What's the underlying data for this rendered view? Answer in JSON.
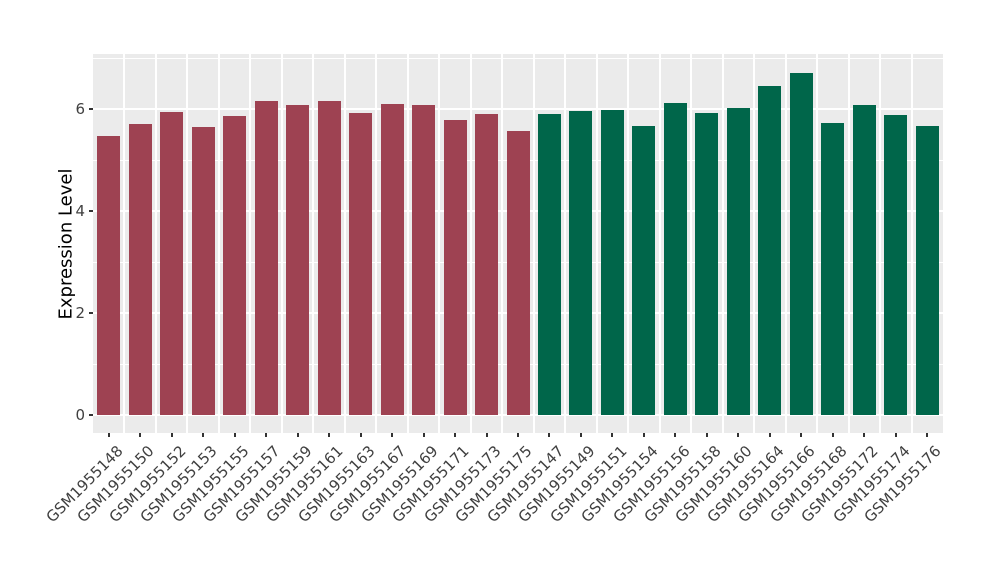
{
  "chart_data": {
    "type": "bar",
    "title": "",
    "xlabel": "",
    "ylabel": "Expression Level",
    "ylim": [
      0,
      7.1
    ],
    "yticks": [
      0,
      2,
      4,
      6
    ],
    "ytick_labels": [
      "0",
      "2",
      "4",
      "6"
    ],
    "minor_yticks": [
      1,
      3,
      5,
      7
    ],
    "grid": true,
    "legend_position": "none",
    "panel_bg": "#EBEBEB",
    "grid_color": "#FFFFFF",
    "tick_color": "#333333",
    "axis_text_color": "#404040",
    "group_colors": {
      "group1": "#9E4252",
      "group2": "#00664A"
    },
    "categories": [
      "GSM1955148",
      "GSM1955150",
      "GSM1955152",
      "GSM1955153",
      "GSM1955155",
      "GSM1955157",
      "GSM1955159",
      "GSM1955161",
      "GSM1955163",
      "GSM1955167",
      "GSM1955169",
      "GSM1955171",
      "GSM1955173",
      "GSM1955175",
      "GSM1955147",
      "GSM1955149",
      "GSM1955151",
      "GSM1955154",
      "GSM1955156",
      "GSM1955158",
      "GSM1955160",
      "GSM1955164",
      "GSM1955166",
      "GSM1955168",
      "GSM1955172",
      "GSM1955174",
      "GSM1955176"
    ],
    "values": [
      5.48,
      5.7,
      5.95,
      5.64,
      5.87,
      6.16,
      6.08,
      6.15,
      5.92,
      6.1,
      6.08,
      5.79,
      5.91,
      5.57,
      5.9,
      5.97,
      5.99,
      5.67,
      6.12,
      5.92,
      6.01,
      6.45,
      6.71,
      5.73,
      6.08,
      5.89,
      5.67
    ],
    "groups": [
      "group1",
      "group1",
      "group1",
      "group1",
      "group1",
      "group1",
      "group1",
      "group1",
      "group1",
      "group1",
      "group1",
      "group1",
      "group1",
      "group1",
      "group2",
      "group2",
      "group2",
      "group2",
      "group2",
      "group2",
      "group2",
      "group2",
      "group2",
      "group2",
      "group2",
      "group2",
      "group2"
    ]
  }
}
